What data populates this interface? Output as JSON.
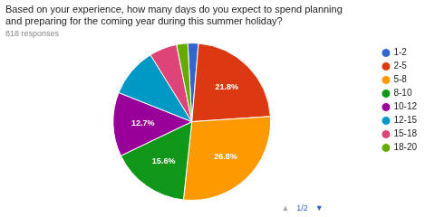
{
  "chart_data": {
    "type": "pie",
    "title": [
      "Based on your experience, how many days do you expect to spend planning",
      "and preparing for the coming year during this summer holiday?"
    ],
    "subtitle": "818 responses",
    "categories": [
      "1-2",
      "2-5",
      "5-8",
      "8-10",
      "10-12",
      "12-15",
      "15-18",
      "18-20"
    ],
    "values": [
      2.1,
      21.8,
      26.8,
      15.6,
      12.7,
      9.8,
      5.5,
      2.2
    ],
    "value_labels": [
      null,
      "21.8%",
      "26.8%",
      "15.6%",
      "12.7%",
      null,
      null,
      null
    ],
    "colors": [
      "#3366cc",
      "#dc3912",
      "#ff9900",
      "#109618",
      "#990099",
      "#0099c6",
      "#dd4477",
      "#66aa00"
    ],
    "data_labels": true,
    "legend": "right",
    "annotations": [
      "▲",
      "1/2",
      "▼"
    ]
  }
}
